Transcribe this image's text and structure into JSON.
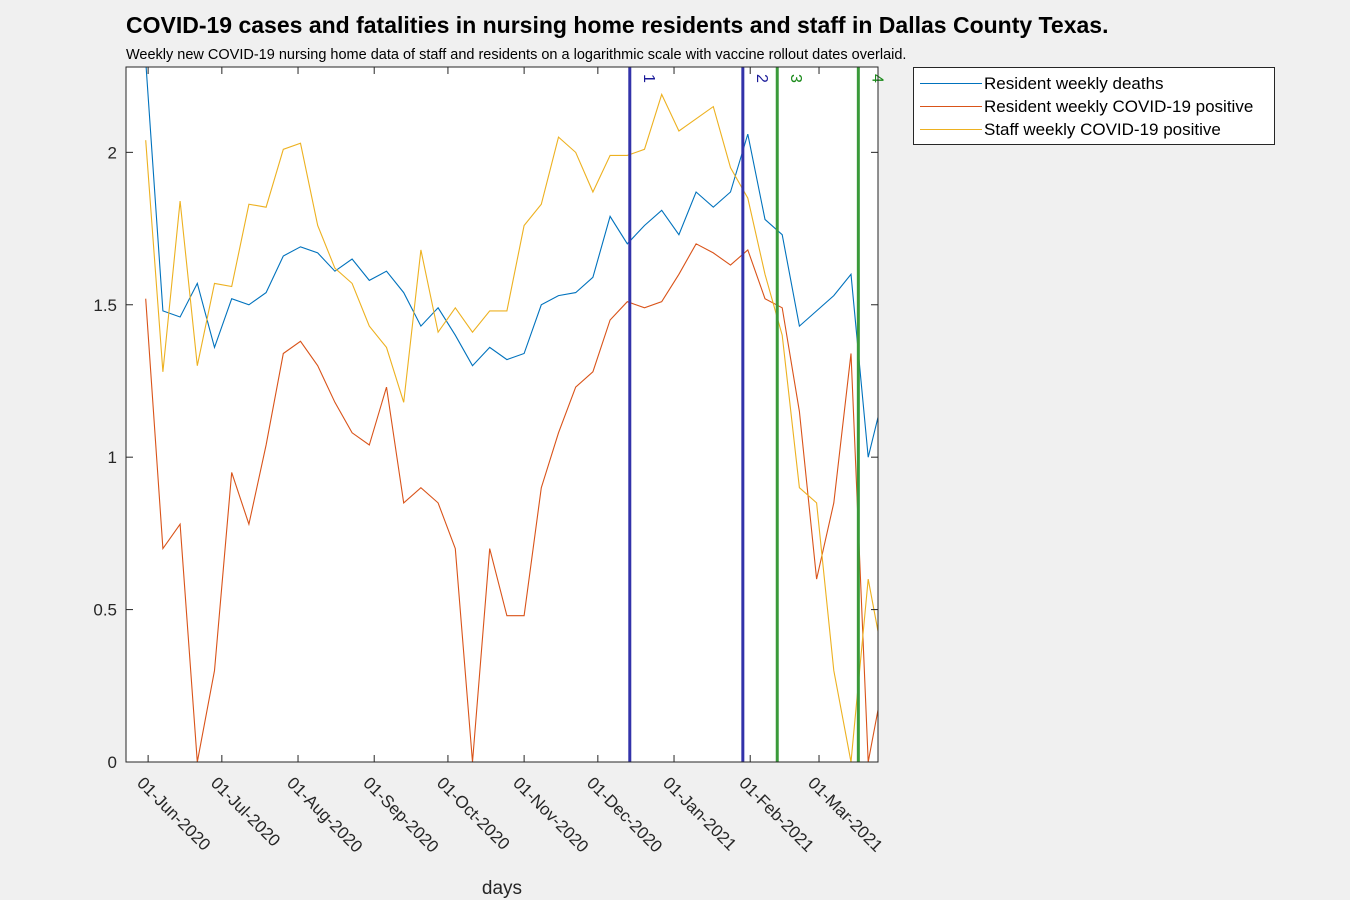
{
  "title": "COVID-19 cases and fatalities in nursing home residents and staff in Dallas County Texas.",
  "subtitle": "Weekly new COVID-19 nursing home data of staff and residents on a logarithmic scale with vaccine rollout dates overlaid.",
  "chart_data": {
    "type": "line",
    "xlabel": "days",
    "ylabel": "",
    "xlim": [
      "2020-05-23",
      "2021-03-25"
    ],
    "ylim": [
      0,
      2.28
    ],
    "y_ticks": [
      0,
      0.5,
      1,
      1.5,
      2
    ],
    "y_tick_labels": [
      "0",
      "0.5",
      "1",
      "1.5",
      "2"
    ],
    "x_ticks": [
      "2020-06-01",
      "2020-07-01",
      "2020-08-01",
      "2020-09-01",
      "2020-10-01",
      "2020-11-01",
      "2020-12-01",
      "2021-01-01",
      "2021-02-01",
      "2021-03-01"
    ],
    "x_tick_labels": [
      "01-Jun-2020",
      "01-Jul-2020",
      "01-Aug-2020",
      "01-Sep-2020",
      "01-Oct-2020",
      "01-Nov-2020",
      "01-Dec-2020",
      "01-Jan-2021",
      "01-Feb-2021",
      "01-Mar-2021"
    ],
    "legend_position": "outside-top-right",
    "grid": false,
    "x": [
      "2020-05-31",
      "2020-06-07",
      "2020-06-14",
      "2020-06-21",
      "2020-06-28",
      "2020-07-05",
      "2020-07-12",
      "2020-07-19",
      "2020-07-26",
      "2020-08-02",
      "2020-08-09",
      "2020-08-16",
      "2020-08-23",
      "2020-08-30",
      "2020-09-06",
      "2020-09-13",
      "2020-09-20",
      "2020-09-27",
      "2020-10-04",
      "2020-10-11",
      "2020-10-18",
      "2020-10-25",
      "2020-11-01",
      "2020-11-08",
      "2020-11-15",
      "2020-11-22",
      "2020-11-29",
      "2020-12-06",
      "2020-12-13",
      "2020-12-20",
      "2020-12-27",
      "2021-01-03",
      "2021-01-10",
      "2021-01-17",
      "2021-01-24",
      "2021-01-31",
      "2021-02-07",
      "2021-02-14",
      "2021-02-21",
      "2021-02-28",
      "2021-03-07",
      "2021-03-14",
      "2021-03-21",
      "2021-03-28"
    ],
    "series": [
      {
        "name": "Resident weekly deaths",
        "color": "#0072bd",
        "values": [
          2.3,
          1.48,
          1.46,
          1.57,
          1.36,
          1.52,
          1.5,
          1.54,
          1.66,
          1.69,
          1.67,
          1.61,
          1.65,
          1.58,
          1.61,
          1.54,
          1.43,
          1.49,
          1.4,
          1.3,
          1.36,
          1.32,
          1.34,
          1.5,
          1.53,
          1.54,
          1.59,
          1.79,
          1.7,
          1.76,
          1.81,
          1.73,
          1.87,
          1.82,
          1.87,
          2.06,
          1.78,
          1.73,
          1.43,
          1.48,
          1.53,
          1.6,
          1.0,
          1.23
        ]
      },
      {
        "name": "Resident weekly COVID-19 positive",
        "color": "#d95319",
        "values": [
          1.52,
          0.7,
          0.78,
          0.0,
          0.3,
          0.95,
          0.78,
          1.04,
          1.34,
          1.38,
          1.3,
          1.18,
          1.08,
          1.04,
          1.23,
          0.85,
          0.9,
          0.85,
          0.7,
          0.0,
          0.7,
          0.48,
          0.48,
          0.9,
          1.08,
          1.23,
          1.28,
          1.45,
          1.51,
          1.49,
          1.51,
          1.6,
          1.7,
          1.67,
          1.63,
          1.68,
          1.52,
          1.49,
          1.15,
          0.6,
          0.85,
          1.34,
          0.0,
          0.3
        ]
      },
      {
        "name": "Staff weekly COVID-19 positive",
        "color": "#edb120",
        "values": [
          2.04,
          1.28,
          1.84,
          1.3,
          1.57,
          1.56,
          1.83,
          1.82,
          2.01,
          2.03,
          1.76,
          1.62,
          1.57,
          1.43,
          1.36,
          1.18,
          1.68,
          1.41,
          1.49,
          1.41,
          1.48,
          1.48,
          1.76,
          1.83,
          2.05,
          2.0,
          1.87,
          1.99,
          1.99,
          2.01,
          2.19,
          2.07,
          2.11,
          2.15,
          1.95,
          1.85,
          1.6,
          1.4,
          0.9,
          0.85,
          0.3,
          0.0,
          0.6,
          0.3
        ]
      }
    ],
    "vertical_lines": [
      {
        "label": "1",
        "x": "2020-12-14",
        "color": "#3333aa"
      },
      {
        "label": "2",
        "x": "2021-01-29",
        "color": "#3333aa"
      },
      {
        "label": "3",
        "x": "2021-02-12",
        "color": "#3a9a3a"
      },
      {
        "label": "4",
        "x": "2021-03-17",
        "color": "#3a9a3a"
      }
    ]
  }
}
